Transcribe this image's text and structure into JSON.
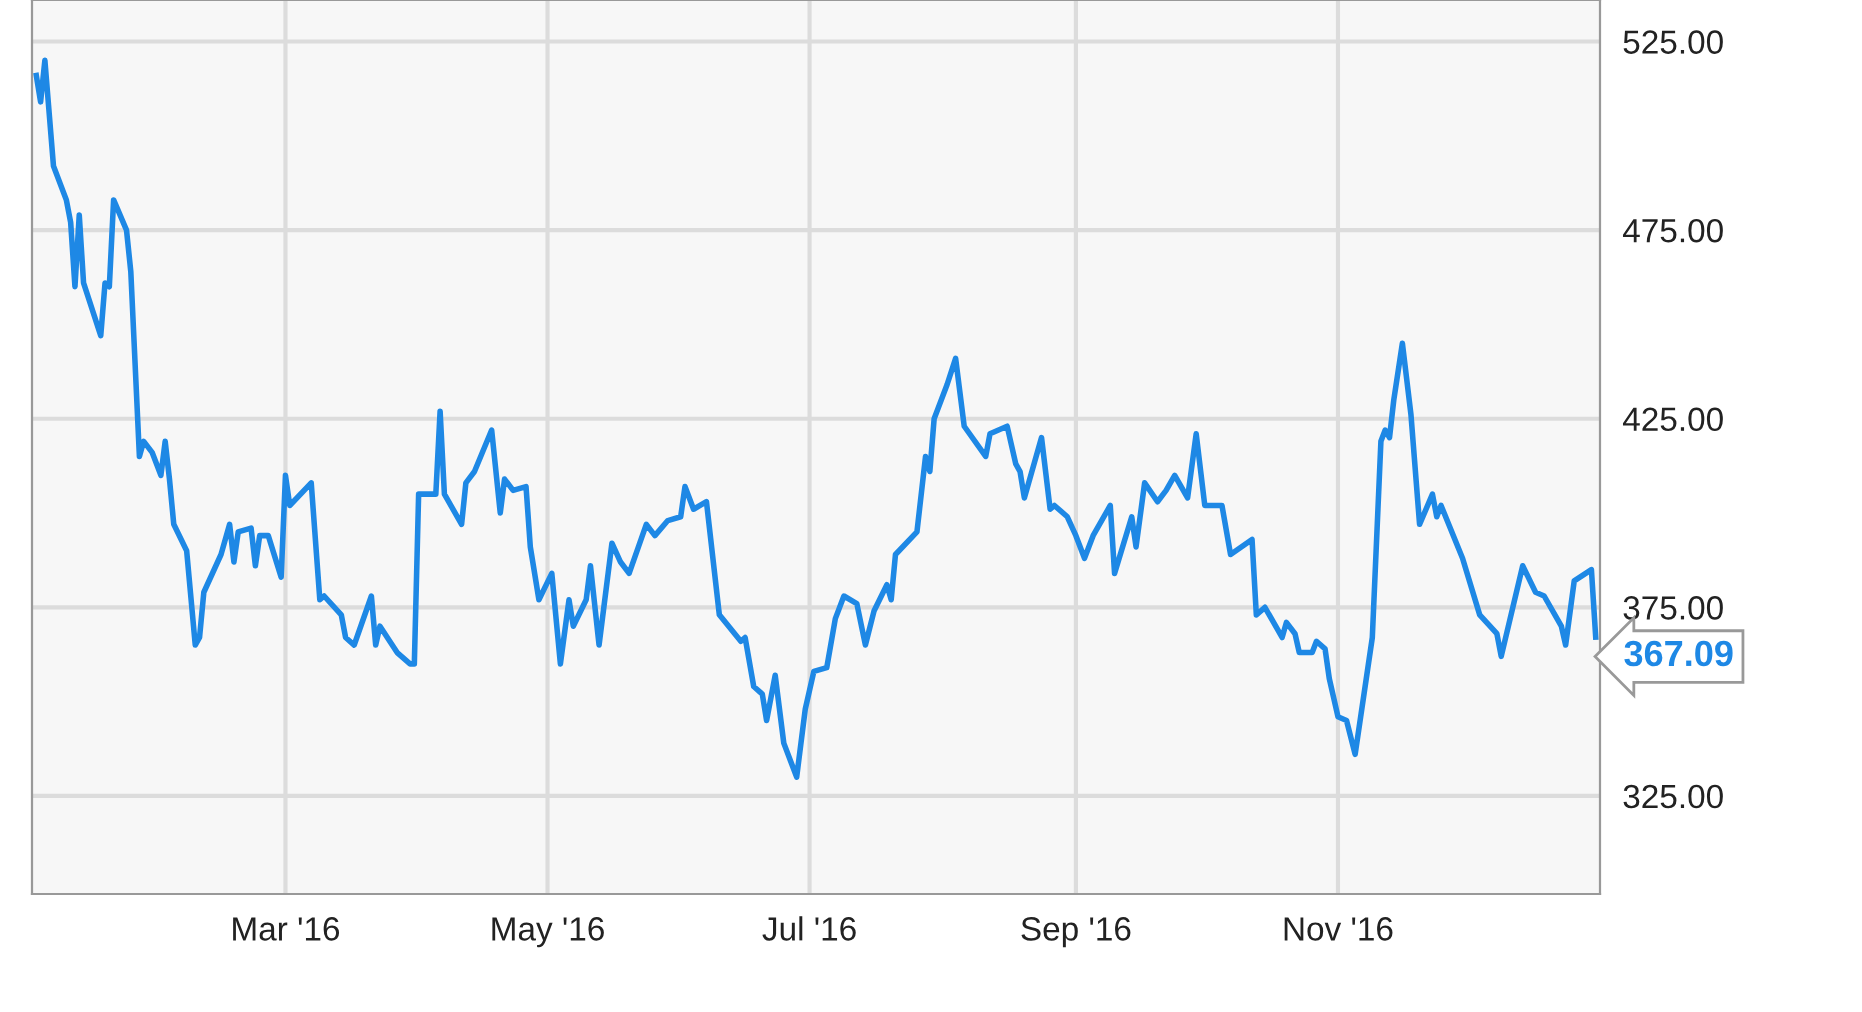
{
  "chart_data": {
    "type": "line",
    "x": [
      "2016-01-03",
      "2016-01-04",
      "2016-01-05",
      "2016-01-07",
      "2016-01-10",
      "2016-01-11",
      "2016-01-12",
      "2016-01-13",
      "2016-01-14",
      "2016-01-18",
      "2016-01-19",
      "2016-01-20",
      "2016-01-21",
      "2016-01-24",
      "2016-01-25",
      "2016-01-27",
      "2016-01-28",
      "2016-01-30",
      "2016-02-01",
      "2016-02-02",
      "2016-02-03",
      "2016-02-04",
      "2016-02-07",
      "2016-02-09",
      "2016-02-10",
      "2016-02-11",
      "2016-02-15",
      "2016-02-17",
      "2016-02-18",
      "2016-02-19",
      "2016-02-22",
      "2016-02-23",
      "2016-02-24",
      "2016-02-26",
      "2016-02-29",
      "2016-03-01",
      "2016-03-02",
      "2016-03-07",
      "2016-03-09",
      "2016-03-10",
      "2016-03-14",
      "2016-03-15",
      "2016-03-17",
      "2016-03-21",
      "2016-03-22",
      "2016-03-23",
      "2016-03-27",
      "2016-03-30",
      "2016-03-31",
      "2016-04-01",
      "2016-04-05",
      "2016-04-06",
      "2016-04-07",
      "2016-04-11",
      "2016-04-12",
      "2016-04-14",
      "2016-04-18",
      "2016-04-20",
      "2016-04-21",
      "2016-04-23",
      "2016-04-26",
      "2016-04-27",
      "2016-04-29",
      "2016-05-02",
      "2016-05-04",
      "2016-05-06",
      "2016-05-07",
      "2016-05-10",
      "2016-05-11",
      "2016-05-13",
      "2016-05-16",
      "2016-05-18",
      "2016-05-20",
      "2016-05-24",
      "2016-05-26",
      "2016-05-29",
      "2016-06-01",
      "2016-06-02",
      "2016-06-04",
      "2016-06-07",
      "2016-06-10",
      "2016-06-15",
      "2016-06-16",
      "2016-06-18",
      "2016-06-20",
      "2016-06-21",
      "2016-06-23",
      "2016-06-25",
      "2016-06-28",
      "2016-06-30",
      "2016-07-02",
      "2016-07-05",
      "2016-07-07",
      "2016-07-09",
      "2016-07-12",
      "2016-07-14",
      "2016-07-16",
      "2016-07-19",
      "2016-07-20",
      "2016-07-21",
      "2016-07-26",
      "2016-07-28",
      "2016-07-29",
      "2016-07-30",
      "2016-08-02",
      "2016-08-04",
      "2016-08-06",
      "2016-08-11",
      "2016-08-12",
      "2016-08-16",
      "2016-08-18",
      "2016-08-19",
      "2016-08-20",
      "2016-08-24",
      "2016-08-26",
      "2016-08-27",
      "2016-08-30",
      "2016-09-01",
      "2016-09-03",
      "2016-09-05",
      "2016-09-09",
      "2016-09-10",
      "2016-09-14",
      "2016-09-15",
      "2016-09-17",
      "2016-09-20",
      "2016-09-22",
      "2016-09-24",
      "2016-09-27",
      "2016-09-29",
      "2016-10-01",
      "2016-10-05",
      "2016-10-07",
      "2016-10-12",
      "2016-10-13",
      "2016-10-15",
      "2016-10-19",
      "2016-10-20",
      "2016-10-22",
      "2016-10-23",
      "2016-10-26",
      "2016-10-27",
      "2016-10-29",
      "2016-10-30",
      "2016-11-01",
      "2016-11-03",
      "2016-11-05",
      "2016-11-09",
      "2016-11-11",
      "2016-11-12",
      "2016-11-13",
      "2016-11-14",
      "2016-11-16",
      "2016-11-18",
      "2016-11-20",
      "2016-11-23",
      "2016-11-24",
      "2016-11-25",
      "2016-11-30",
      "2016-12-04",
      "2016-12-08",
      "2016-12-09",
      "2016-12-14",
      "2016-12-17",
      "2016-12-19",
      "2016-12-23",
      "2016-12-24",
      "2016-12-26",
      "2016-12-30",
      "2016-12-31"
    ],
    "series": [
      {
        "color": "#1e88e5",
        "values": [
          516,
          509,
          520,
          492,
          483,
          477,
          460,
          479,
          461,
          447,
          461,
          460,
          483,
          475,
          464,
          415,
          419,
          416,
          410,
          419,
          409,
          397,
          390,
          365,
          367,
          379,
          389,
          397,
          387,
          395,
          396,
          386,
          394,
          394,
          383,
          410,
          402,
          408,
          377,
          378,
          373,
          367,
          365,
          378,
          365,
          370,
          363,
          360,
          360,
          405,
          405,
          427,
          405,
          397,
          408,
          411,
          422,
          400,
          409,
          406,
          407,
          391,
          377,
          384,
          360,
          377,
          370,
          377,
          386,
          365,
          392,
          387,
          384,
          397,
          394,
          398,
          399,
          407,
          401,
          403,
          373,
          366,
          367,
          354,
          352,
          345,
          357,
          339,
          330,
          348,
          358,
          359,
          372,
          378,
          376,
          365,
          374,
          381,
          377,
          389,
          395,
          415,
          411,
          425,
          434,
          441,
          423,
          415,
          421,
          423,
          413,
          411,
          404,
          420,
          401,
          402,
          399,
          394,
          388,
          394,
          402,
          384,
          399,
          391,
          408,
          403,
          406,
          410,
          404,
          421,
          402,
          402,
          389,
          393,
          373,
          375,
          367,
          371,
          368,
          363,
          363,
          366,
          364,
          356,
          346,
          345,
          336,
          367,
          419,
          422,
          420,
          430,
          445,
          426,
          397,
          405,
          399,
          402,
          388,
          373,
          368,
          362,
          386,
          379,
          378,
          370,
          365,
          382,
          385,
          367.09
        ],
        "value_labels": [
          null,
          null,
          null,
          null,
          null,
          null,
          null,
          null,
          null,
          null,
          null,
          null,
          null,
          null,
          null,
          null,
          null,
          null,
          null,
          null,
          null,
          null,
          null,
          null,
          null,
          null,
          null,
          null,
          null,
          null,
          null,
          null,
          null,
          null,
          null,
          null,
          null,
          null,
          null,
          null,
          null,
          null,
          null,
          null,
          null,
          null,
          null,
          null,
          null,
          null,
          null,
          null,
          null,
          null,
          null,
          null,
          null,
          null,
          null,
          null,
          null,
          null,
          null,
          null,
          null,
          null,
          null,
          null,
          null,
          null,
          null,
          null,
          null,
          null,
          null,
          null,
          null,
          null,
          null,
          null,
          null,
          null,
          null,
          null,
          null,
          null,
          null,
          null,
          null,
          null,
          null,
          null,
          null,
          null,
          null,
          null,
          null,
          null,
          null,
          null,
          null,
          null,
          null,
          null,
          null,
          null,
          null,
          null,
          null,
          null,
          null,
          null,
          null,
          null,
          null,
          null,
          null,
          null,
          null,
          null,
          null,
          null,
          null,
          null,
          null,
          null,
          null,
          null,
          null,
          null,
          null,
          null,
          null,
          null,
          null,
          null,
          null,
          null,
          null,
          null,
          null,
          null,
          null,
          null,
          null,
          null,
          null,
          null,
          null,
          null,
          null,
          null,
          null,
          null,
          null,
          null,
          null,
          null,
          null,
          null,
          null,
          null,
          null,
          null,
          null,
          null,
          null,
          null,
          null,
          "367.09"
        ]
      }
    ],
    "xlim": [
      "2016-01-02",
      "2017-01-01"
    ],
    "xticks": [
      {
        "value": "2016-03-01",
        "label": "Mar '16"
      },
      {
        "value": "2016-05-01",
        "label": "May '16"
      },
      {
        "value": "2016-07-01",
        "label": "Jul '16"
      },
      {
        "value": "2016-09-01",
        "label": "Sep '16"
      },
      {
        "value": "2016-11-01",
        "label": "Nov '16"
      }
    ],
    "ylim": [
      299,
      536
    ],
    "yticks": [
      {
        "value": 325,
        "label": "325.00"
      },
      {
        "value": 375,
        "label": "375.00"
      },
      {
        "value": 425,
        "label": "425.00"
      },
      {
        "value": 475,
        "label": "475.00"
      },
      {
        "value": 525,
        "label": "525.00"
      }
    ],
    "grid": true,
    "marker": "none",
    "line_style": "solid"
  }
}
